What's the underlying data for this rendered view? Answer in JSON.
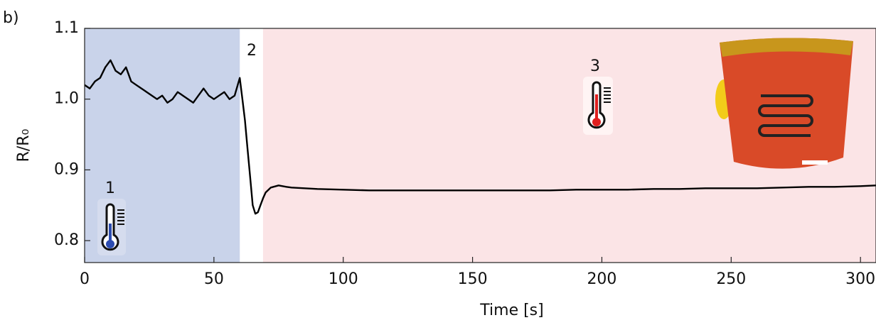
{
  "chart_data": {
    "type": "line",
    "panel_label": "b)",
    "xlabel": "Time [s]",
    "ylabel": "R/R₀",
    "xlim": [
      0,
      306
    ],
    "ylim": [
      0.769,
      1.1
    ],
    "xticks": [
      0,
      50,
      100,
      150,
      200,
      250,
      300
    ],
    "yticks": [
      0.8,
      0.9,
      {
        "value": 1,
        "label": "1.0"
      },
      1.1
    ],
    "color": "#000000",
    "regions": [
      {
        "xlim": [
          0,
          60
        ],
        "color": "#c9d3ea"
      },
      {
        "xlim": [
          69,
          306
        ],
        "color": "#fbe4e6"
      }
    ],
    "annotations": [
      "1",
      "2",
      "3"
    ],
    "x": [
      0,
      2,
      4,
      6,
      8,
      10,
      12,
      14,
      16,
      18,
      20,
      22,
      24,
      26,
      28,
      30,
      32,
      34,
      36,
      38,
      40,
      42,
      44,
      46,
      48,
      50,
      52,
      54,
      56,
      58,
      60,
      61,
      62,
      63,
      64,
      65,
      66,
      67,
      68,
      69,
      70,
      72,
      75,
      78,
      80,
      90,
      100,
      110,
      120,
      130,
      140,
      150,
      160,
      170,
      180,
      190,
      200,
      210,
      220,
      230,
      240,
      250,
      260,
      270,
      280,
      290,
      300,
      306
    ],
    "values": [
      1.02,
      1.015,
      1.025,
      1.03,
      1.045,
      1.055,
      1.04,
      1.035,
      1.045,
      1.025,
      1.02,
      1.015,
      1.01,
      1.005,
      1.0,
      1.005,
      0.995,
      1.0,
      1.01,
      1.005,
      1.0,
      0.995,
      1.005,
      1.015,
      1.005,
      1.0,
      1.005,
      1.01,
      1.0,
      1.005,
      1.03,
      1.0,
      0.97,
      0.93,
      0.89,
      0.85,
      0.838,
      0.84,
      0.85,
      0.86,
      0.868,
      0.875,
      0.878,
      0.876,
      0.875,
      0.873,
      0.872,
      0.871,
      0.871,
      0.871,
      0.871,
      0.871,
      0.871,
      0.871,
      0.871,
      0.872,
      0.872,
      0.872,
      0.873,
      0.873,
      0.874,
      0.874,
      0.874,
      0.875,
      0.876,
      0.876,
      0.877,
      0.878
    ]
  }
}
